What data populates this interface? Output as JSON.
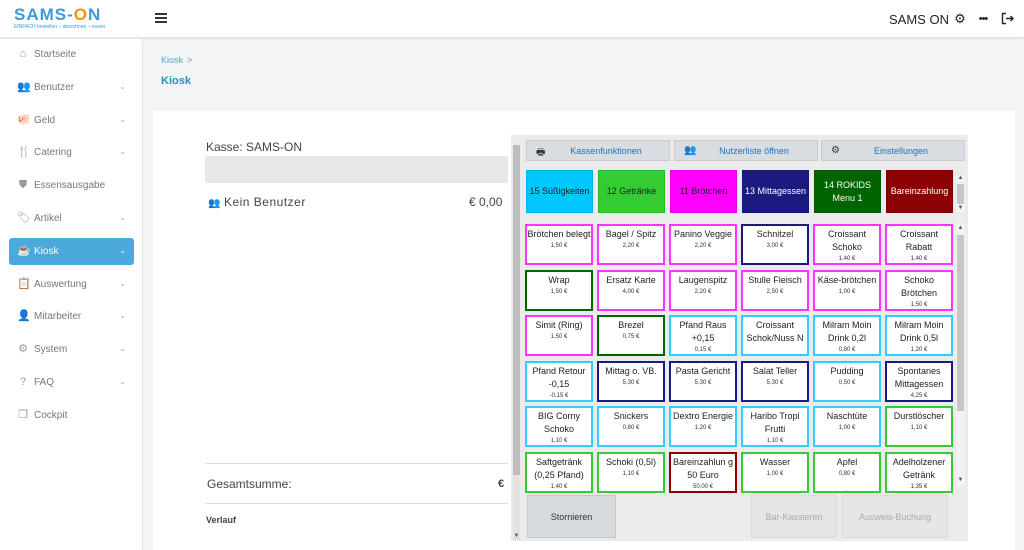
{
  "app": {
    "logo_text_a": "SAMS-",
    "logo_text_o": "O",
    "logo_text_b": "N",
    "logo_tagline": "EINFACH bestellen – abrechnen – essen",
    "user_name": "SAMS ON"
  },
  "sidebar": {
    "items": [
      {
        "label": "Startseite",
        "icon": "home-icon",
        "glyph": "⌂",
        "chevron": false
      },
      {
        "label": "Benutzer",
        "icon": "users-icon",
        "glyph": "👥",
        "chevron": true
      },
      {
        "label": "Geld",
        "icon": "piggy-bank-icon",
        "glyph": "🐖",
        "chevron": true
      },
      {
        "label": "Catering",
        "icon": "cutlery-icon",
        "glyph": "🍴",
        "chevron": true
      },
      {
        "label": "Essensausgabe",
        "icon": "shield-icon",
        "glyph": "⛊",
        "chevron": false
      },
      {
        "label": "Artikel",
        "icon": "tag-icon",
        "glyph": "🏷",
        "chevron": true
      },
      {
        "label": "Kiosk",
        "icon": "coffee-icon",
        "glyph": "☕",
        "chevron": true,
        "active": true
      },
      {
        "label": "Auswertung",
        "icon": "clipboard-icon",
        "glyph": "📋",
        "chevron": true
      },
      {
        "label": "Mitarbeiter",
        "icon": "user-icon",
        "glyph": "👤",
        "chevron": true
      },
      {
        "label": "System",
        "icon": "gear-icon",
        "glyph": "⚙",
        "chevron": true
      },
      {
        "label": "FAQ",
        "icon": "help-icon",
        "glyph": "?",
        "chevron": true
      },
      {
        "label": "Cockpit",
        "icon": "copy-icon",
        "glyph": "❐",
        "chevron": false
      }
    ]
  },
  "breadcrumb": {
    "item": "Kiosk",
    "sep": ">"
  },
  "page": {
    "title": "Kiosk"
  },
  "kasse": {
    "title": "Kasse: SAMS-ON",
    "user_label": "Kein Benutzer",
    "user_amount": "€ 0,00",
    "total_label": "Gesamtsumme:",
    "total_amount": "€",
    "history_label": "Verlauf"
  },
  "function_buttons": [
    {
      "label": "Kassenfunktionen",
      "icon": "printer-icon",
      "glyph": "🖶"
    },
    {
      "label": "Nutzerliste öffnen",
      "icon": "users-icon",
      "glyph": "👥"
    },
    {
      "label": "Einstellungen",
      "icon": "gear-icon",
      "glyph": "⚙"
    }
  ],
  "categories": [
    {
      "label": "15 Süßigkeiten",
      "color": "#00c8ff",
      "text_color": "#222222"
    },
    {
      "label": "12 Getränke",
      "color": "#33cc33",
      "text_color": "#222222"
    },
    {
      "label": "11 Brötchen",
      "color": "#ff00ff",
      "text_color": "#222222"
    },
    {
      "label": "13 Mittagessen",
      "color": "#1a1a80",
      "text_color": "#ffffff"
    },
    {
      "label": "14 ROKIDS Menu 1",
      "color": "#006400",
      "text_color": "#ffffff"
    },
    {
      "label": "Bareinzahlung",
      "color": "#8b0000",
      "text_color": "#ffffff"
    }
  ],
  "products": [
    {
      "name": "Brötchen belegt",
      "price": "1,50 €",
      "color": "#ff33ff"
    },
    {
      "name": "Bagel / Spitz",
      "price": "2,20 €",
      "color": "#ff33ff"
    },
    {
      "name": "Panino Veggie",
      "price": "2,20 €",
      "color": "#ff33ff"
    },
    {
      "name": "Schnitzel",
      "price": "3,00 €",
      "color": "#1a1a80"
    },
    {
      "name": "Croissant Schoko",
      "price": "1,40 €",
      "color": "#ff33ff"
    },
    {
      "name": "Croissant Rabatt",
      "price": "1,40 €",
      "color": "#ff33ff"
    },
    {
      "name": "Wrap",
      "price": "1,50 €",
      "color": "#006400"
    },
    {
      "name": "Ersatz Karte",
      "price": "4,00 €",
      "color": "#ff33ff"
    },
    {
      "name": "Laugenspitz",
      "price": "2,20 €",
      "color": "#ff33ff"
    },
    {
      "name": "Stulle Fleisch",
      "price": "2,50 €",
      "color": "#ff33ff"
    },
    {
      "name": "Käse-brötchen",
      "price": "1,00 €",
      "color": "#ff33ff"
    },
    {
      "name": "Schoko Brötchen",
      "price": "1,50 €",
      "color": "#ff33ff"
    },
    {
      "name": "Simit (Ring)",
      "price": "1,50 €",
      "color": "#ff33ff"
    },
    {
      "name": "Brezel",
      "price": "0,75 €",
      "color": "#006400"
    },
    {
      "name": "Pfand Raus +0,15",
      "price": "0,15 €",
      "color": "#33ccff"
    },
    {
      "name": "Croissant Schok/Nuss N",
      "price": "",
      "color": "#33ccff"
    },
    {
      "name": "Milram Moin Drink 0,2l",
      "price": "0,80 €",
      "color": "#33ccff"
    },
    {
      "name": "Milram Moin Drink 0,5l",
      "price": "1,20 €",
      "color": "#33ccff"
    },
    {
      "name": "Pfand Retour -0,15",
      "price": "-0,15 €",
      "color": "#33ccff"
    },
    {
      "name": "Mittag o. VB.",
      "price": "5,30 €",
      "color": "#1a1a80"
    },
    {
      "name": "Pasta Gericht",
      "price": "5,30 €",
      "color": "#1a1a80"
    },
    {
      "name": "Salat Teller",
      "price": "5,30 €",
      "color": "#1a1a80"
    },
    {
      "name": "Pudding",
      "price": "0,50 €",
      "color": "#33ccff"
    },
    {
      "name": "Spontanes Mittagessen",
      "price": "4,25 €",
      "color": "#1a1a80"
    },
    {
      "name": "BIG Corny Schoko",
      "price": "1,10 €",
      "color": "#33ccff"
    },
    {
      "name": "Snickers",
      "price": "0,80 €",
      "color": "#33ccff"
    },
    {
      "name": "Dextro Energie",
      "price": "1,20 €",
      "color": "#33ccff"
    },
    {
      "name": "Haribo Tropi Frutti",
      "price": "1,10 €",
      "color": "#33ccff"
    },
    {
      "name": "Naschtüte",
      "price": "1,00 €",
      "color": "#33ccff"
    },
    {
      "name": "Durstlöscher",
      "price": "1,10 €",
      "color": "#33cc33"
    },
    {
      "name": "Saftgetränk (0,25 Pfand)",
      "price": "1,40 €",
      "color": "#33cc33"
    },
    {
      "name": "Schoki (0,5l)",
      "price": "1,10 €",
      "color": "#33cc33"
    },
    {
      "name": "Bareinzahlun g 50 Euro",
      "price": "50,00 €",
      "color": "#8b0000"
    },
    {
      "name": "Wasser",
      "price": "1,00 €",
      "color": "#33cc33"
    },
    {
      "name": "Apfel",
      "price": "0,80 €",
      "color": "#33cc33"
    },
    {
      "name": "Adelholzener Getränk",
      "price": "1,35 €",
      "color": "#33cc33"
    }
  ],
  "actions": {
    "cancel": "Stornieren",
    "cash": "Bar-Kassieren",
    "id_booking": "Ausweis-Buchung"
  }
}
